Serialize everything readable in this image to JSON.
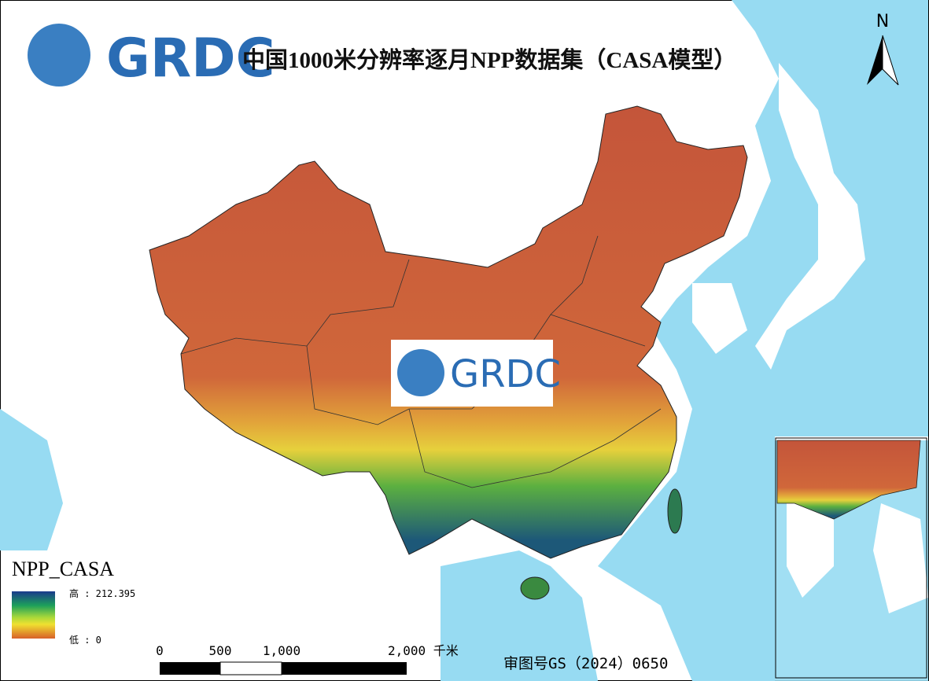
{
  "logo_top": {
    "text": "GRDC"
  },
  "title": "中国1000米分辨率逐月NPP数据集（CASA模型）",
  "logo_center": {
    "text": "GRDC"
  },
  "north_arrow": {
    "label": "N"
  },
  "legend": {
    "title": "NPP_CASA",
    "high": "高 : 212.395",
    "low": "低 : 0"
  },
  "scale_bar": {
    "labels": [
      "0",
      "500",
      "1,000",
      "2,000 千米"
    ]
  },
  "approval_number": "审图号GS（2024）0650"
}
